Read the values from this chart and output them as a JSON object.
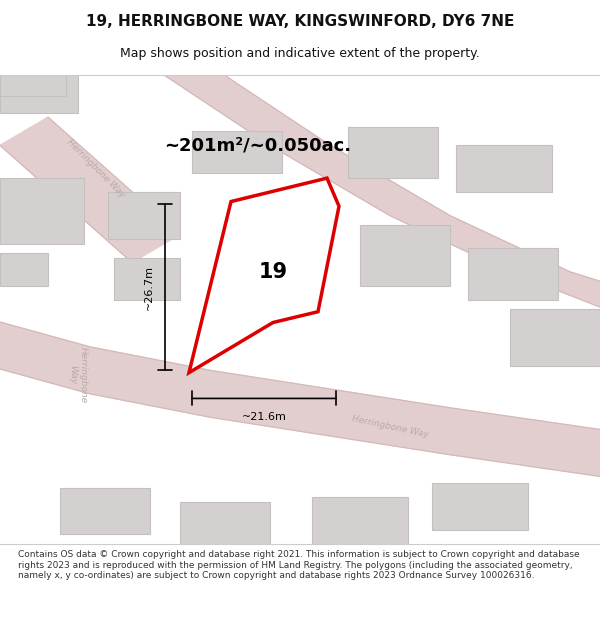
{
  "title_line1": "19, HERRINGBONE WAY, KINGSWINFORD, DY6 7NE",
  "title_line2": "Map shows position and indicative extent of the property.",
  "area_text": "~201m²/~0.050ac.",
  "label_number": "19",
  "dim_width": "~21.6m",
  "dim_height": "~26.7m",
  "footer_text": "Contains OS data © Crown copyright and database right 2021. This information is subject to Crown copyright and database rights 2023 and is reproduced with the permission of HM Land Registry. The polygons (including the associated geometry, namely x, y co-ordinates) are subject to Crown copyright and database rights 2023 Ordnance Survey 100026316.",
  "map_bg": "#efeded",
  "road_color": "#e2cece",
  "road_edge": "#d4b8b8",
  "building_fill": "#d4d0d0",
  "building_edge": "#c4c0c0",
  "plot_color": "#dd0000",
  "road_label_color": "#b8aaaa",
  "title_color": "#111111",
  "footer_color": "#333333"
}
